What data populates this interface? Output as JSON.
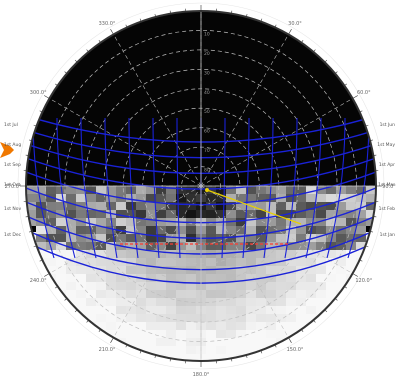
{
  "colors": {
    "sky": "#050505",
    "grid_dashed": "#bdbdbd",
    "sun_path": "#1a22d8",
    "sun_vector": "#e8d000",
    "horizon_marker": "#ff3b30",
    "compass_arrow": "#f07800",
    "rim": "#333333"
  },
  "azimuth_labels": [
    "0.0°",
    "30.0°",
    "60.0°",
    "90.0°",
    "120.0°",
    "150.0°",
    "180.0°",
    "210.0°",
    "240.0°",
    "270.0°",
    "300.0°",
    "330.0°"
  ],
  "altitude_labels": [
    "80",
    "70",
    "60",
    "50",
    "40",
    "30",
    "20",
    "10"
  ],
  "sun_path_labels": {
    "left": [
      "1st Jul",
      "1st Aug",
      "1st Sep",
      "1st Oct",
      "1st Nov",
      "1st Dec"
    ],
    "right": [
      "1st Jun",
      "1st May",
      "1st Apr",
      "1st Mar",
      "1st Feb",
      "1st Jan"
    ]
  }
}
